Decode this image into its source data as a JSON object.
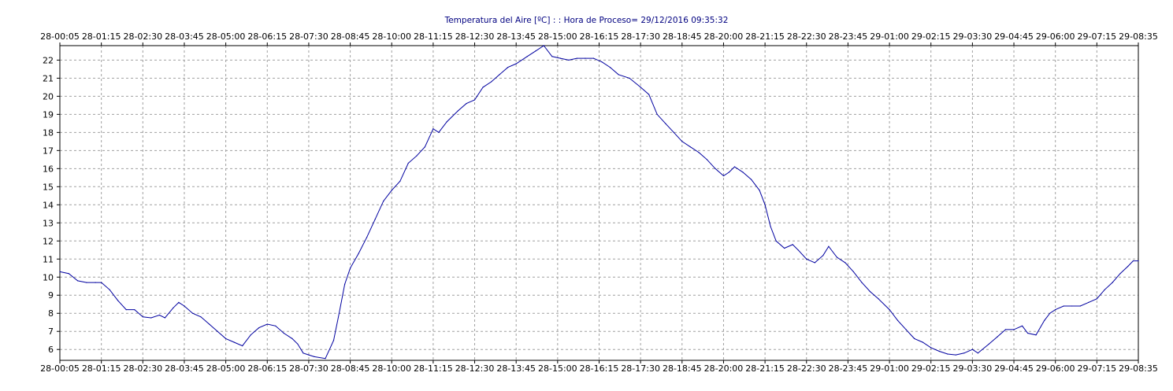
{
  "chart_data": {
    "type": "line",
    "title": "Temperatura del Aire [ºC] : : Hora de Proceso= 29/12/2016 09:35:32",
    "xlabel": "",
    "ylabel": "",
    "ylim": [
      5.4,
      22.8
    ],
    "grid": true,
    "x_ticks": [
      "28-00:05",
      "28-01:15",
      "28-02:30",
      "28-03:45",
      "28-05:00",
      "28-06:15",
      "28-07:30",
      "28-08:45",
      "28-10:00",
      "28-11:15",
      "28-12:30",
      "28-13:45",
      "28-15:00",
      "28-16:15",
      "28-17:30",
      "28-18:45",
      "28-20:00",
      "28-21:15",
      "28-22:30",
      "28-23:45",
      "29-01:00",
      "29-02:15",
      "29-03:30",
      "29-04:45",
      "29-06:00",
      "29-07:15",
      "29-08:35"
    ],
    "y_ticks": [
      6,
      7,
      8,
      9,
      10,
      11,
      12,
      13,
      14,
      15,
      16,
      17,
      18,
      19,
      20,
      21,
      22
    ],
    "line_color": "#0000a0",
    "series": [
      {
        "points": [
          [
            "28-00:05",
            10.3
          ],
          [
            "28-00:20",
            10.2
          ],
          [
            "28-00:35",
            9.8
          ],
          [
            "28-00:50",
            9.7
          ],
          [
            "28-01:05",
            9.7
          ],
          [
            "28-01:15",
            9.7
          ],
          [
            "28-01:30",
            9.3
          ],
          [
            "28-01:45",
            8.7
          ],
          [
            "28-02:00",
            8.2
          ],
          [
            "28-02:15",
            8.2
          ],
          [
            "28-02:30",
            7.8
          ],
          [
            "28-02:45",
            7.75
          ],
          [
            "28-03:00",
            7.9
          ],
          [
            "28-03:10",
            7.75
          ],
          [
            "28-03:25",
            8.3
          ],
          [
            "28-03:35",
            8.6
          ],
          [
            "28-03:45",
            8.4
          ],
          [
            "28-04:00",
            8.0
          ],
          [
            "28-04:15",
            7.8
          ],
          [
            "28-04:30",
            7.4
          ],
          [
            "28-04:45",
            7.0
          ],
          [
            "28-05:00",
            6.6
          ],
          [
            "28-05:15",
            6.4
          ],
          [
            "28-05:30",
            6.2
          ],
          [
            "28-05:45",
            6.8
          ],
          [
            "28-06:00",
            7.2
          ],
          [
            "28-06:15",
            7.4
          ],
          [
            "28-06:30",
            7.3
          ],
          [
            "28-06:45",
            6.9
          ],
          [
            "28-07:00",
            6.6
          ],
          [
            "28-07:10",
            6.3
          ],
          [
            "28-07:20",
            5.8
          ],
          [
            "28-07:30",
            5.7
          ],
          [
            "28-07:40",
            5.6
          ],
          [
            "28-08:00",
            5.5
          ],
          [
            "28-08:15",
            6.5
          ],
          [
            "28-08:25",
            8.0
          ],
          [
            "28-08:35",
            9.6
          ],
          [
            "28-08:45",
            10.5
          ],
          [
            "28-09:00",
            11.3
          ],
          [
            "28-09:15",
            12.2
          ],
          [
            "28-09:30",
            13.2
          ],
          [
            "28-09:45",
            14.2
          ],
          [
            "28-10:00",
            14.8
          ],
          [
            "28-10:15",
            15.3
          ],
          [
            "28-10:30",
            16.3
          ],
          [
            "28-10:45",
            16.7
          ],
          [
            "28-11:00",
            17.2
          ],
          [
            "28-11:15",
            18.2
          ],
          [
            "28-11:25",
            18.0
          ],
          [
            "28-11:40",
            18.6
          ],
          [
            "28-12:00",
            19.2
          ],
          [
            "28-12:15",
            19.6
          ],
          [
            "28-12:30",
            19.8
          ],
          [
            "28-12:45",
            20.5
          ],
          [
            "28-13:00",
            20.8
          ],
          [
            "28-13:15",
            21.2
          ],
          [
            "28-13:30",
            21.6
          ],
          [
            "28-13:45",
            21.8
          ],
          [
            "28-14:05",
            22.2
          ],
          [
            "28-14:20",
            22.5
          ],
          [
            "28-14:35",
            22.8
          ],
          [
            "28-14:50",
            22.2
          ],
          [
            "28-15:05",
            22.1
          ],
          [
            "28-15:20",
            22.0
          ],
          [
            "28-15:35",
            22.1
          ],
          [
            "28-15:50",
            22.1
          ],
          [
            "28-16:05",
            22.1
          ],
          [
            "28-16:20",
            21.9
          ],
          [
            "28-16:35",
            21.6
          ],
          [
            "28-16:50",
            21.2
          ],
          [
            "28-17:10",
            21.0
          ],
          [
            "28-17:30",
            20.5
          ],
          [
            "28-17:45",
            20.1
          ],
          [
            "28-18:00",
            19.0
          ],
          [
            "28-18:15",
            18.5
          ],
          [
            "28-18:30",
            18.0
          ],
          [
            "28-18:45",
            17.5
          ],
          [
            "28-19:00",
            17.2
          ],
          [
            "28-19:15",
            16.9
          ],
          [
            "28-19:30",
            16.5
          ],
          [
            "28-19:45",
            16.0
          ],
          [
            "28-20:00",
            15.6
          ],
          [
            "28-20:10",
            15.8
          ],
          [
            "28-20:20",
            16.1
          ],
          [
            "28-20:35",
            15.8
          ],
          [
            "28-20:50",
            15.4
          ],
          [
            "28-21:05",
            14.8
          ],
          [
            "28-21:15",
            14.0
          ],
          [
            "28-21:25",
            12.8
          ],
          [
            "28-21:35",
            12.0
          ],
          [
            "28-21:50",
            11.6
          ],
          [
            "28-22:05",
            11.8
          ],
          [
            "28-22:15",
            11.5
          ],
          [
            "28-22:30",
            11.0
          ],
          [
            "28-22:45",
            10.8
          ],
          [
            "28-23:00",
            11.2
          ],
          [
            "28-23:10",
            11.7
          ],
          [
            "28-23:25",
            11.1
          ],
          [
            "28-23:40",
            10.8
          ],
          [
            "28-23:55",
            10.3
          ],
          [
            "29-00:10",
            9.7
          ],
          [
            "29-00:25",
            9.2
          ],
          [
            "29-00:40",
            8.8
          ],
          [
            "29-01:00",
            8.2
          ],
          [
            "29-01:15",
            7.6
          ],
          [
            "29-01:30",
            7.1
          ],
          [
            "29-01:45",
            6.6
          ],
          [
            "29-02:00",
            6.4
          ],
          [
            "29-02:15",
            6.1
          ],
          [
            "29-02:30",
            5.9
          ],
          [
            "29-02:45",
            5.75
          ],
          [
            "29-03:00",
            5.7
          ],
          [
            "29-03:15",
            5.8
          ],
          [
            "29-03:30",
            6.0
          ],
          [
            "29-03:40",
            5.8
          ],
          [
            "29-04:00",
            6.3
          ],
          [
            "29-04:15",
            6.7
          ],
          [
            "29-04:30",
            7.1
          ],
          [
            "29-04:45",
            7.1
          ],
          [
            "29-05:00",
            7.3
          ],
          [
            "29-05:10",
            6.9
          ],
          [
            "29-05:25",
            6.8
          ],
          [
            "29-05:40",
            7.6
          ],
          [
            "29-05:50",
            8.0
          ],
          [
            "29-06:00",
            8.2
          ],
          [
            "29-06:15",
            8.4
          ],
          [
            "29-06:30",
            8.4
          ],
          [
            "29-06:45",
            8.4
          ],
          [
            "29-07:00",
            8.6
          ],
          [
            "29-07:15",
            8.8
          ],
          [
            "29-07:30",
            9.3
          ],
          [
            "29-07:45",
            9.7
          ],
          [
            "29-08:00",
            10.2
          ],
          [
            "29-08:15",
            10.6
          ],
          [
            "29-08:25",
            10.9
          ],
          [
            "29-08:35",
            10.9
          ]
        ]
      }
    ]
  }
}
